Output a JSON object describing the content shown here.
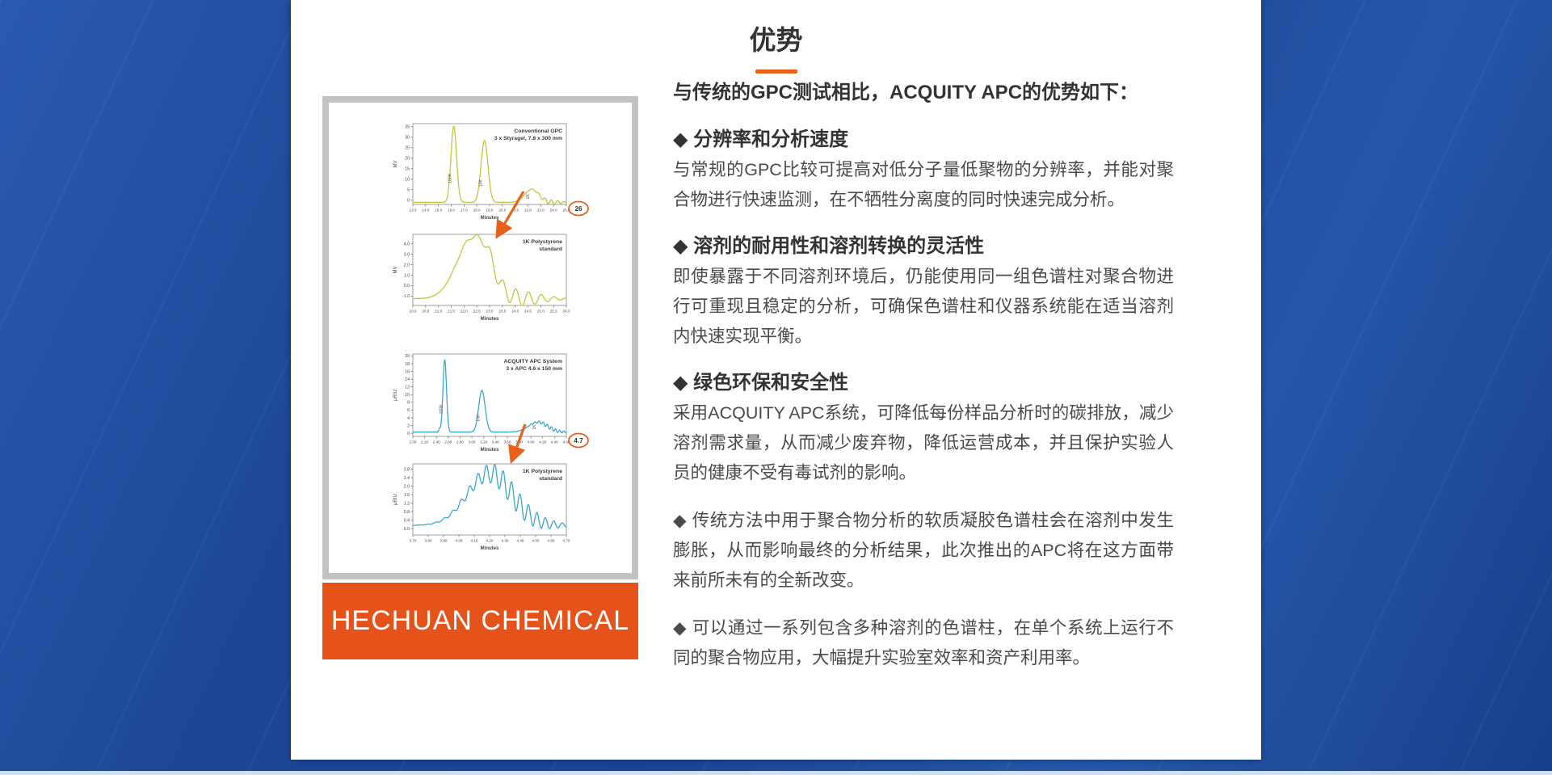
{
  "header": {
    "title": "优势"
  },
  "figure": {
    "brand_banner": "HECHUAN CHEMICAL"
  },
  "content": {
    "intro": "与传统的GPC测试相比，ACQUITY APC的优势如下：",
    "sections": [
      {
        "heading": "◆ 分辨率和分析速度",
        "body": "与常规的GPC比较可提高对低分子量低聚物的分辨率，并能对聚合物进行快速监测，在不牺牲分离度的同时快速完成分析。"
      },
      {
        "heading": "◆ 溶剂的耐用性和溶剂转换的灵活性",
        "body": "即使暴露于不同溶剂环境后，仍能使用同一组色谱柱对聚合物进行可重现且稳定的分析，可确保色谱柱和仪器系统能在适当溶剂内快速实现平衡。"
      },
      {
        "heading": "◆ 绿色环保和安全性",
        "body": "采用ACQUITY APC系统，可降低每份样品分析时的碳排放，减少溶剂需求量，从而减少废弃物，降低运营成本，并且保护实验人员的健康不受有毒试剂的影响。"
      },
      {
        "heading": "",
        "body": "◆ 传统方法中用于聚合物分析的软质凝胶色谱柱会在溶剂中发生膨胀，从而影响最终的分析结果，此次推出的APC将在这方面带来前所未有的全新改变。"
      },
      {
        "heading": "",
        "body": "◆ 可以通过一系列包含多种溶剂的色谱柱，在单个系统上运行不同的聚合物应用，大幅提升实验室效率和资产利用率。"
      }
    ]
  },
  "chart_data": [
    {
      "id": "conventional-gpc",
      "type": "line",
      "title": [
        "Conventional GPC",
        "3 x Styragel, 7.8 x 300 mm"
      ],
      "xlabel": "Minutes",
      "ylabel": "MV",
      "xlim": [
        13.0,
        25.0
      ],
      "ylim": [
        -2.0,
        36.5
      ],
      "xtick_labels": [
        "13.0",
        "14.0",
        "15.0",
        "16.0",
        "17.0",
        "18.0",
        "19.0",
        "20.0",
        "21.0",
        "22.0",
        "23.0",
        "24.0",
        "25.0"
      ],
      "ytick_values": [
        0,
        5,
        10,
        15,
        20,
        25,
        30,
        35
      ],
      "ytick_labels": [
        "0",
        "5",
        "10",
        "15",
        "20",
        "25",
        "30",
        "35"
      ],
      "baseline": -1.0,
      "peaks": [
        {
          "c": 16.2,
          "h": 36.3,
          "w": 0.22,
          "label": "100K"
        },
        {
          "c": 18.6,
          "h": 29.5,
          "w": 0.27,
          "label": "10K"
        },
        {
          "c": 22.3,
          "h": 6.2,
          "w": 0.55,
          "label": "1K"
        }
      ],
      "ripples": [
        {
          "center": 23.7,
          "span": 1.7,
          "amp": 1.1,
          "period": 0.5
        }
      ],
      "color": "#c3c73a",
      "callout": {
        "value": "26"
      }
    },
    {
      "id": "gpc-1k-polystyrene",
      "type": "line",
      "title": [
        "1K Polystyrene",
        "standard"
      ],
      "xlabel": "Minutes",
      "ylabel": "MV",
      "xlim": [
        20.0,
        26.0
      ],
      "ylim": [
        -1.9,
        4.9
      ],
      "xtick_labels": [
        "20.0",
        "20.5",
        "21.0",
        "21.5",
        "22.0",
        "22.5",
        "23.0",
        "23.5",
        "24.0",
        "24.5",
        "25.0",
        "25.5",
        "26.0"
      ],
      "ytick_values": [
        -1.0,
        0.0,
        1.0,
        2.0,
        3.0,
        4.0
      ],
      "ytick_labels": [
        "-1.0",
        "0.0",
        "1.0",
        "2.0",
        "3.0",
        "4.0"
      ],
      "baseline": -1.25,
      "peaks": [
        {
          "c": 22.35,
          "h": 5.9,
          "w": 0.62
        },
        {
          "c": 22.95,
          "h": 1.0,
          "w": 0.22
        }
      ],
      "ripples": [
        {
          "center": 23.9,
          "span": 2.1,
          "amp": 0.8,
          "period": 0.5
        }
      ],
      "color": "#c3c73a"
    },
    {
      "id": "acquity-apc",
      "type": "line",
      "title": [
        "ACQUITY APC System",
        "3 x APC 4.6 x 150 mm"
      ],
      "xlabel": "Minutes",
      "ylabel": "μRIU",
      "xlim": [
        2.0,
        4.6
      ],
      "ylim": [
        -0.8,
        20.5
      ],
      "xtick_labels": [
        "2.00",
        "2.20",
        "2.40",
        "2.60",
        "2.80",
        "3.00",
        "3.20",
        "3.40",
        "3.60",
        "3.80",
        "4.00",
        "4.20",
        "4.40",
        "4.60"
      ],
      "ytick_values": [
        0,
        2,
        4,
        6,
        8,
        10,
        12,
        14,
        16,
        18,
        20
      ],
      "ytick_labels": [
        "0",
        "2",
        "4",
        "6",
        "8",
        "10",
        "12",
        "14",
        "16",
        "18",
        "20"
      ],
      "baseline": 0.3,
      "peaks": [
        {
          "c": 2.45,
          "h": 0.8,
          "w": 0.012
        },
        {
          "c": 2.54,
          "h": 18.7,
          "w": 0.03,
          "label": "100K"
        },
        {
          "c": 3.17,
          "h": 10.8,
          "w": 0.055,
          "label": "10K"
        },
        {
          "c": 4.12,
          "h": 2.6,
          "w": 0.16,
          "label": "1K"
        }
      ],
      "ripples": [
        {
          "center": 4.33,
          "span": 0.45,
          "amp": 0.45,
          "period": 0.07
        }
      ],
      "color": "#3aa8cd",
      "callout": {
        "value": "4.7"
      }
    },
    {
      "id": "apc-1k-polystyrene",
      "type": "line",
      "title": [
        "1K Polystyrene",
        "standard"
      ],
      "xlabel": "Minutes",
      "ylabel": "μRIU",
      "xlim": [
        3.7,
        4.7
      ],
      "ylim": [
        -0.3,
        3.05
      ],
      "xtick_labels": [
        "3.70",
        "3.80",
        "3.90",
        "4.00",
        "4.10",
        "4.20",
        "4.30",
        "4.40",
        "4.50",
        "4.60",
        "4.70"
      ],
      "ytick_values": [
        0.0,
        0.4,
        0.8,
        1.2,
        1.6,
        2.0,
        2.4,
        2.8
      ],
      "ytick_labels": [
        "0.0",
        "0.4",
        "0.8",
        "1.2",
        "1.6",
        "2.0",
        "2.4",
        "2.8"
      ],
      "baseline": 0.15,
      "peaks": [
        {
          "c": 4.2,
          "h": 2.45,
          "w": 0.145
        }
      ],
      "ripples": [
        {
          "center": 4.33,
          "span": 0.42,
          "amp": 0.55,
          "period": 0.055
        }
      ],
      "color": "#3aa8cd"
    }
  ],
  "colors": {
    "accent_orange": "#e8611c",
    "banner_orange": "#e5521a",
    "frame_gray": "#c2c2c2",
    "card_white": "#ffffff",
    "footer_strip": "#cfdff2",
    "heading_text": "#333333",
    "body_text": "#4a4a4a",
    "gpc_trace": "#c3c73a",
    "apc_trace": "#3aa8cd"
  }
}
